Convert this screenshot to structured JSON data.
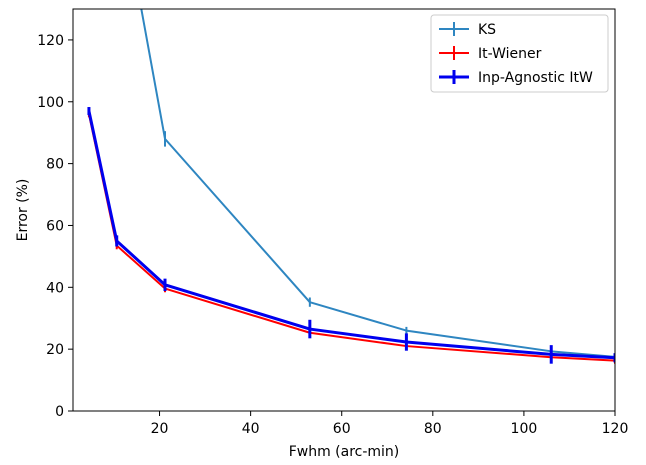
{
  "chart_data": {
    "type": "line",
    "title": "",
    "xlabel": "Fwhm (arc-min)",
    "ylabel": "Error (%)",
    "xlim": [
      1,
      120
    ],
    "ylim": [
      0,
      130
    ],
    "x_ticks": [
      20,
      40,
      60,
      80,
      100,
      120
    ],
    "y_ticks": [
      0,
      20,
      40,
      60,
      80,
      100,
      120
    ],
    "grid": false,
    "legend_position": "top-right",
    "series": [
      {
        "name": "KS",
        "color": "#2e86c1",
        "line_width": 2,
        "x": [
          16,
          21.2,
          53,
          74.2,
          106,
          120
        ],
        "y": [
          130,
          88,
          35.2,
          26,
          19.3,
          17.5
        ],
        "err": [
          0,
          2.5,
          1.5,
          1.2,
          1.0,
          0.8
        ]
      },
      {
        "name": "It-Wiener",
        "color": "#ff0000",
        "line_width": 2,
        "x": [
          4.5,
          10.6,
          21.2,
          53,
          74.2,
          106,
          120
        ],
        "y": [
          96,
          53.5,
          39.6,
          25.3,
          21,
          17.4,
          16.3
        ],
        "err": [
          1.0,
          1.2,
          1.2,
          1.2,
          1.2,
          1.2,
          1.0
        ]
      },
      {
        "name": "Inp-Agnostic ItW",
        "color": "#0000ee",
        "line_width": 3,
        "x": [
          4.5,
          10.6,
          21.2,
          53,
          74.2,
          106,
          120
        ],
        "y": [
          97,
          55,
          40.8,
          26.5,
          22.3,
          18.3,
          17.2
        ],
        "err": [
          1.3,
          1.8,
          2.0,
          3.0,
          2.8,
          3.0,
          1.5
        ]
      }
    ]
  }
}
